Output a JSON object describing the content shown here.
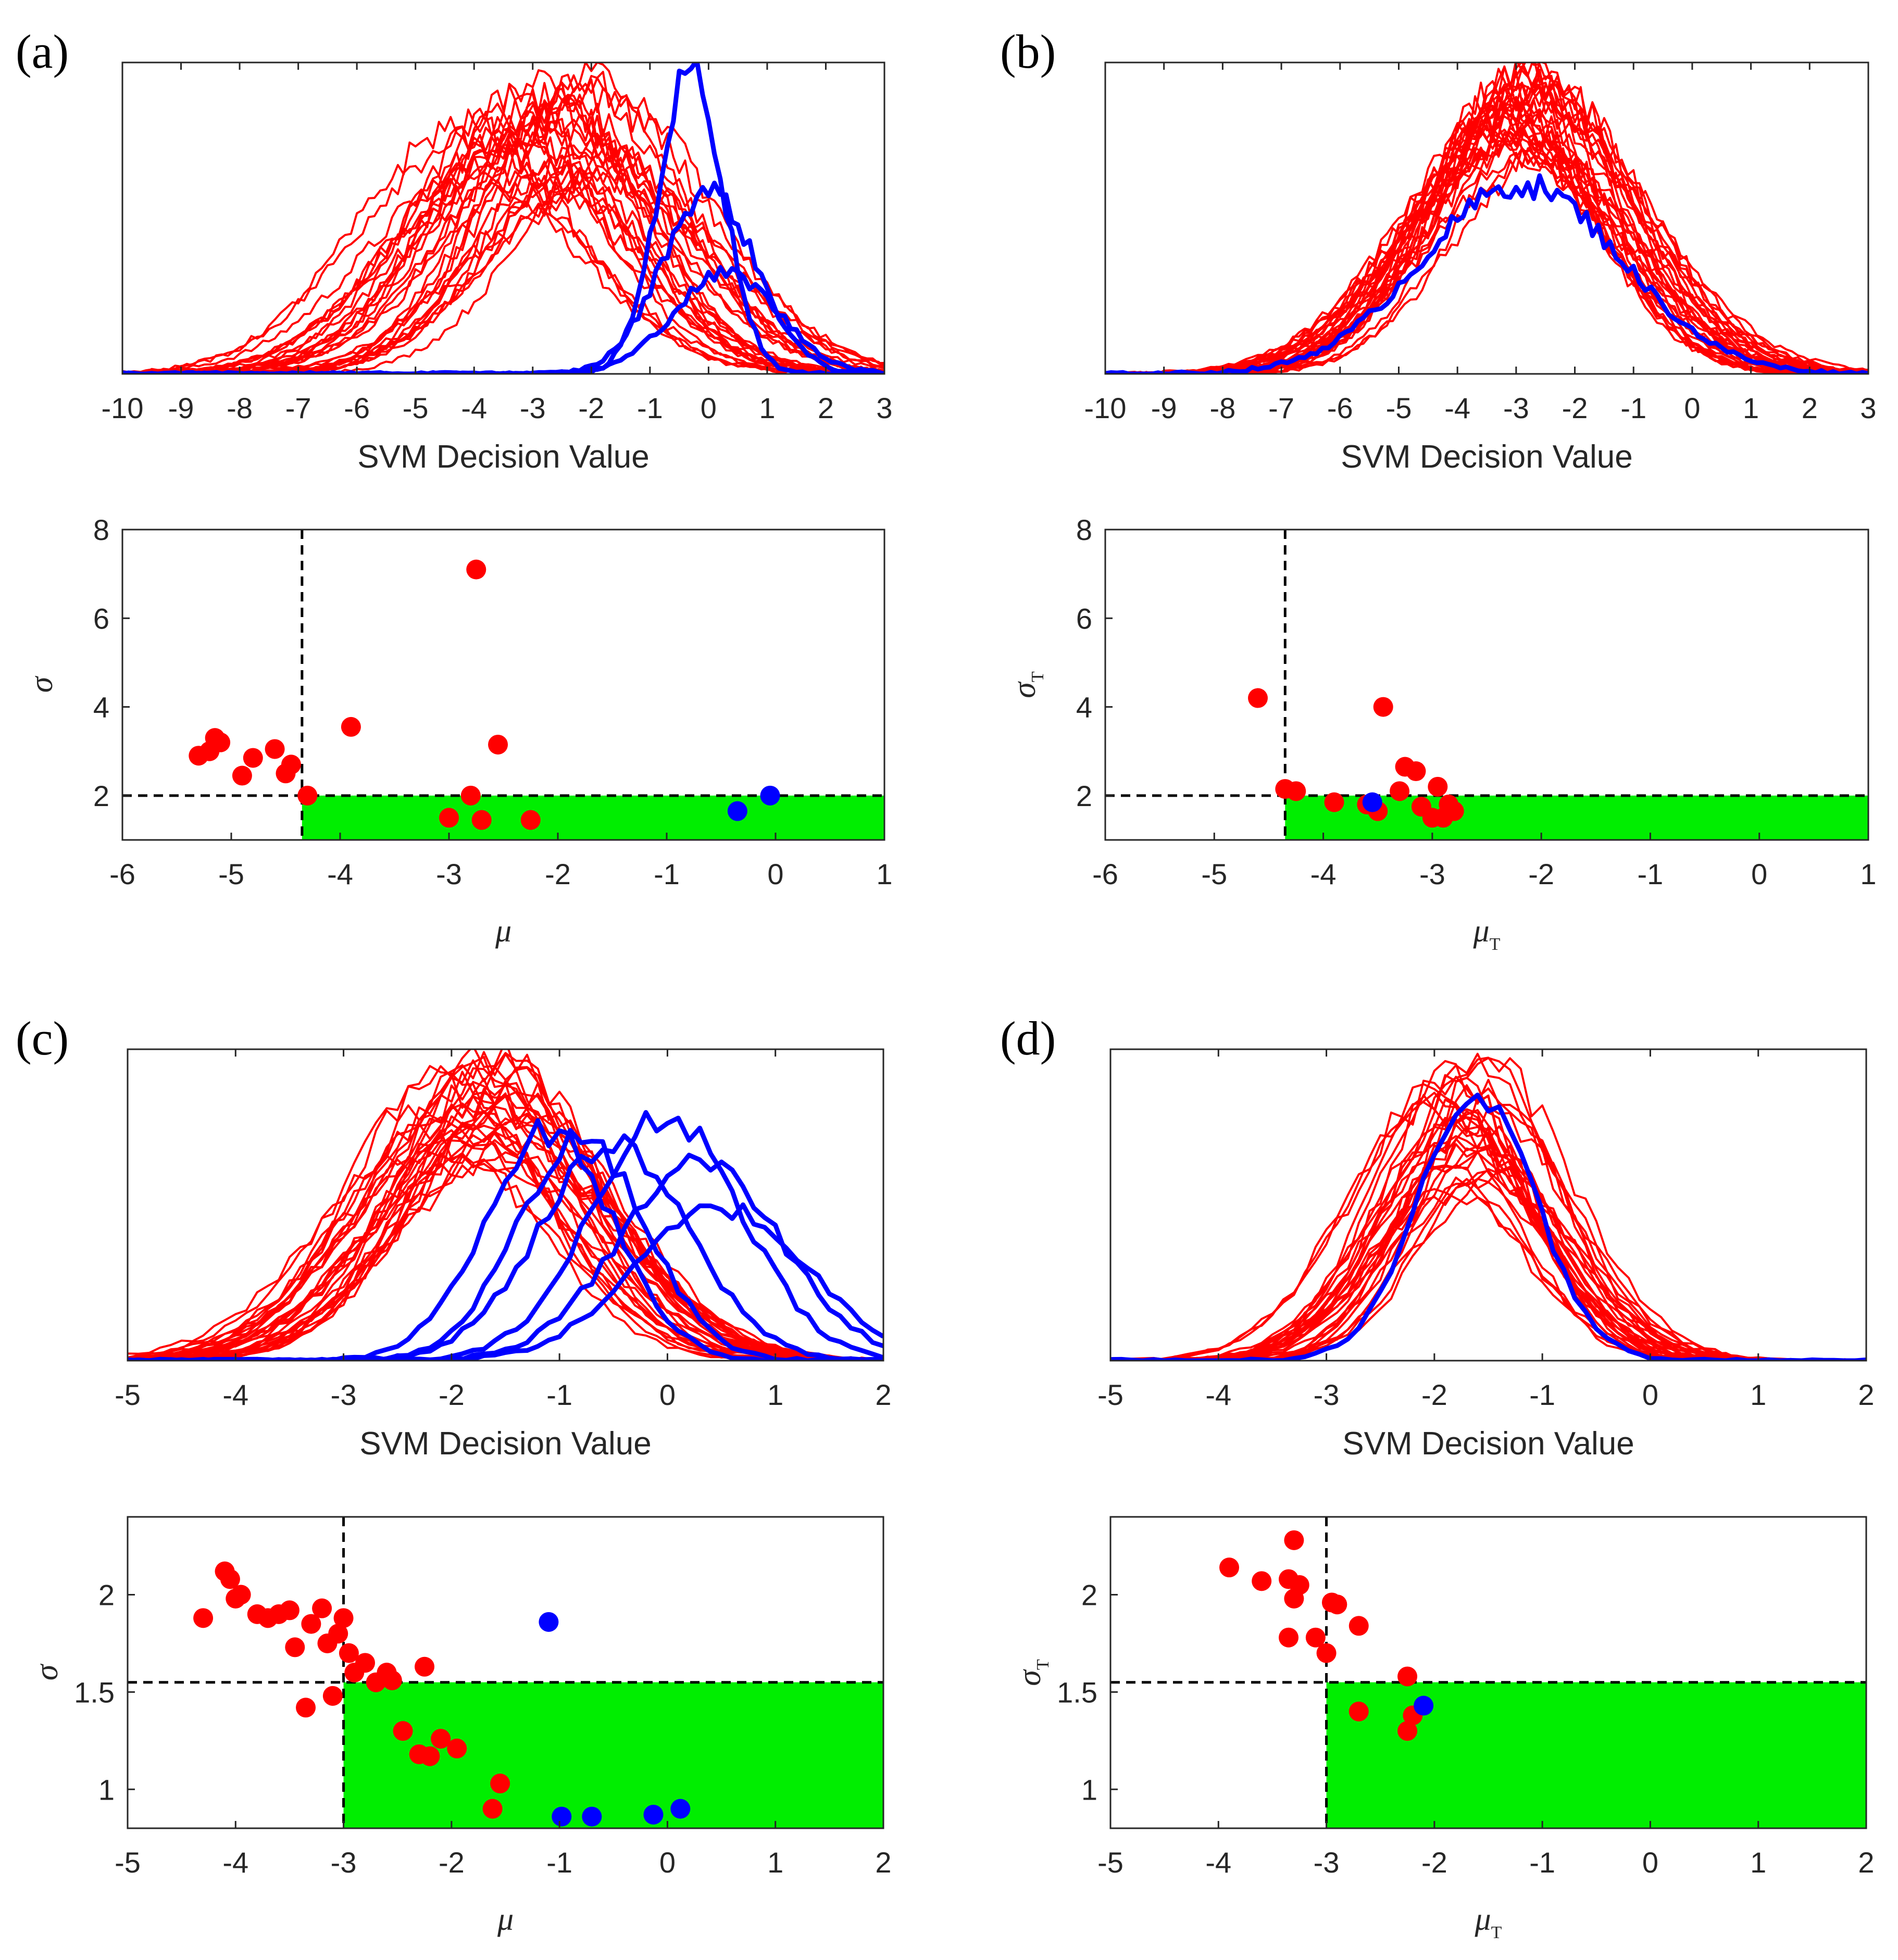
{
  "colors": {
    "red": "#ff0000",
    "blue": "#0000ff",
    "green": "#00ee00",
    "axis": "#262626"
  },
  "panels": [
    {
      "label": "(a)",
      "hist": {
        "type": "line",
        "xlabel": "SVM Decision Value",
        "xlim": [
          -10,
          3
        ],
        "xticks": [
          -10,
          -9,
          -8,
          -7,
          -6,
          -5,
          -4,
          -3,
          -2,
          -1,
          0,
          1,
          2,
          3
        ],
        "red_count": 30,
        "red_mean": [
          -4.2,
          -1.6
        ],
        "red_sd": [
          1.4,
          2.0
        ],
        "red_peak": [
          0.6,
          0.97
        ],
        "blue": [
          {
            "mean": -0.3,
            "sd": 0.55,
            "peak": 1.0
          },
          {
            "mean": 0.0,
            "sd": 0.8,
            "peak": 0.6
          },
          {
            "mean": 0.3,
            "sd": 0.9,
            "peak": 0.33
          }
        ]
      },
      "scatter": {
        "type": "scatter",
        "xlabel": "μ",
        "xlabel_sub": "",
        "ylabel": "σ",
        "ylabel_sub": "",
        "xlim": [
          -6,
          1
        ],
        "ylim": [
          1,
          8
        ],
        "xticks": [
          -6,
          -5,
          -4,
          -3,
          -2,
          -1,
          0,
          1
        ],
        "yticks": [
          2,
          4,
          6,
          8
        ],
        "threshold_x": -4.35,
        "threshold_y": 2.0,
        "red": [
          [
            -5.3,
            2.9
          ],
          [
            -5.2,
            3.0
          ],
          [
            -5.1,
            3.2
          ],
          [
            -5.15,
            3.3
          ],
          [
            -4.9,
            2.45
          ],
          [
            -4.8,
            2.85
          ],
          [
            -4.6,
            3.05
          ],
          [
            -4.5,
            2.5
          ],
          [
            -4.45,
            2.7
          ],
          [
            -4.3,
            2.0
          ],
          [
            -3.9,
            3.55
          ],
          [
            -2.75,
            7.1
          ],
          [
            -2.55,
            3.15
          ],
          [
            -2.8,
            2.0
          ],
          [
            -3.0,
            1.5
          ],
          [
            -2.7,
            1.45
          ],
          [
            -2.25,
            1.45
          ]
        ],
        "blue": [
          [
            -0.35,
            1.65
          ],
          [
            -0.05,
            2.0
          ]
        ]
      }
    },
    {
      "label": "(b)",
      "hist": {
        "type": "line",
        "xlabel": "SVM Decision Value",
        "xlim": [
          -10,
          3
        ],
        "xticks": [
          -10,
          -9,
          -8,
          -7,
          -6,
          -5,
          -4,
          -3,
          -2,
          -1,
          0,
          1,
          2,
          3
        ],
        "red_count": 30,
        "red_mean": [
          -3.2,
          -2.4
        ],
        "red_sd": [
          1.4,
          1.9
        ],
        "red_peak": [
          0.7,
          1.0
        ],
        "blue": [
          {
            "mean": -2.9,
            "sd": 1.7,
            "peak": 0.62
          }
        ]
      },
      "scatter": {
        "type": "scatter",
        "xlabel": "μ",
        "xlabel_sub": "T",
        "ylabel": "σ",
        "ylabel_sub": "T",
        "xlim": [
          -6,
          1
        ],
        "ylim": [
          1,
          8
        ],
        "xticks": [
          -6,
          -5,
          -4,
          -3,
          -2,
          -1,
          0,
          1
        ],
        "yticks": [
          2,
          4,
          6,
          8
        ],
        "threshold_x": -4.35,
        "threshold_y": 2.0,
        "red": [
          [
            -4.6,
            4.2
          ],
          [
            -4.35,
            2.15
          ],
          [
            -4.25,
            2.1
          ],
          [
            -3.9,
            1.85
          ],
          [
            -3.6,
            1.8
          ],
          [
            -3.5,
            1.65
          ],
          [
            -3.45,
            4.0
          ],
          [
            -3.3,
            2.1
          ],
          [
            -3.25,
            2.65
          ],
          [
            -3.15,
            2.55
          ],
          [
            -3.1,
            1.75
          ],
          [
            -3.0,
            1.5
          ],
          [
            -2.95,
            2.2
          ],
          [
            -2.9,
            1.5
          ],
          [
            -2.85,
            1.8
          ],
          [
            -2.8,
            1.65
          ]
        ],
        "blue": [
          [
            -3.55,
            1.85
          ]
        ]
      }
    },
    {
      "label": "(c)",
      "hist": {
        "type": "line",
        "xlabel": "SVM Decision Value",
        "xlim": [
          -5,
          2
        ],
        "xticks": [
          -5,
          -4,
          -3,
          -2,
          -1,
          0,
          1,
          2
        ],
        "red_count": 30,
        "red_mean": [
          -2.1,
          -1.4
        ],
        "red_sd": [
          0.8,
          1.1
        ],
        "red_peak": [
          0.65,
          1.0
        ],
        "blue": [
          {
            "mean": -1.1,
            "sd": 0.6,
            "peak": 0.75
          },
          {
            "mean": -0.8,
            "sd": 0.6,
            "peak": 0.72
          },
          {
            "mean": -0.5,
            "sd": 0.7,
            "peak": 0.7
          },
          {
            "mean": 0.0,
            "sd": 0.7,
            "peak": 0.8
          },
          {
            "mean": 0.3,
            "sd": 0.75,
            "peak": 0.65
          },
          {
            "mean": 0.5,
            "sd": 0.8,
            "peak": 0.5
          }
        ]
      },
      "scatter": {
        "type": "scatter",
        "xlabel": "μ",
        "xlabel_sub": "",
        "ylabel": "σ",
        "ylabel_sub": "",
        "xlim": [
          -5,
          2
        ],
        "ylim": [
          0.8,
          2.4
        ],
        "xticks": [
          -5,
          -4,
          -3,
          -2,
          -1,
          0,
          1,
          2
        ],
        "yticks": [
          1,
          1.5,
          2
        ],
        "threshold_x": -3.0,
        "threshold_y": 1.55,
        "red": [
          [
            -4.3,
            1.88
          ],
          [
            -4.1,
            2.12
          ],
          [
            -4.05,
            2.08
          ],
          [
            -4.0,
            1.98
          ],
          [
            -3.95,
            2.0
          ],
          [
            -3.8,
            1.9
          ],
          [
            -3.7,
            1.88
          ],
          [
            -3.6,
            1.9
          ],
          [
            -3.5,
            1.92
          ],
          [
            -3.45,
            1.73
          ],
          [
            -3.35,
            1.42
          ],
          [
            -3.3,
            1.85
          ],
          [
            -3.2,
            1.93
          ],
          [
            -3.15,
            1.75
          ],
          [
            -3.1,
            1.48
          ],
          [
            -3.05,
            1.8
          ],
          [
            -3.0,
            1.88
          ],
          [
            -2.95,
            1.7
          ],
          [
            -2.9,
            1.6
          ],
          [
            -2.8,
            1.65
          ],
          [
            -2.7,
            1.55
          ],
          [
            -2.6,
            1.6
          ],
          [
            -2.55,
            1.56
          ],
          [
            -2.25,
            1.63
          ],
          [
            -2.45,
            1.3
          ],
          [
            -2.3,
            1.18
          ],
          [
            -2.2,
            1.17
          ],
          [
            -2.1,
            1.26
          ],
          [
            -1.95,
            1.21
          ],
          [
            -1.55,
            1.03
          ],
          [
            -1.62,
            0.9
          ]
        ],
        "blue": [
          [
            -1.1,
            1.86
          ],
          [
            -0.98,
            0.86
          ],
          [
            -0.7,
            0.86
          ],
          [
            -0.13,
            0.87
          ],
          [
            0.12,
            0.9
          ]
        ]
      }
    },
    {
      "label": "(d)",
      "hist": {
        "type": "line",
        "xlabel": "SVM Decision Value",
        "xlim": [
          -5,
          2
        ],
        "xticks": [
          -5,
          -4,
          -3,
          -2,
          -1,
          0,
          1,
          2
        ],
        "red_count": 30,
        "red_mean": [
          -2.0,
          -1.4
        ],
        "red_sd": [
          0.6,
          0.85
        ],
        "red_peak": [
          0.55,
          0.98
        ],
        "blue": [
          {
            "mean": -1.6,
            "sd": 0.55,
            "peak": 0.85
          }
        ]
      },
      "scatter": {
        "type": "scatter",
        "xlabel": "μ",
        "xlabel_sub": "T",
        "ylabel": "σ",
        "ylabel_sub": "T",
        "xlim": [
          -5,
          2
        ],
        "ylim": [
          0.8,
          2.4
        ],
        "xticks": [
          -5,
          -4,
          -3,
          -2,
          -1,
          0,
          1,
          2
        ],
        "yticks": [
          1,
          1.5,
          2
        ],
        "threshold_x": -3.0,
        "threshold_y": 1.55,
        "red": [
          [
            -3.9,
            2.14
          ],
          [
            -3.6,
            2.07
          ],
          [
            -3.35,
            2.08
          ],
          [
            -3.3,
            1.98
          ],
          [
            -3.3,
            2.28
          ],
          [
            -3.25,
            2.05
          ],
          [
            -3.35,
            1.78
          ],
          [
            -3.1,
            1.78
          ],
          [
            -3.0,
            1.7
          ],
          [
            -2.95,
            1.96
          ],
          [
            -2.9,
            1.95
          ],
          [
            -2.7,
            1.84
          ],
          [
            -2.7,
            1.4
          ],
          [
            -2.25,
            1.58
          ],
          [
            -2.2,
            1.38
          ],
          [
            -2.25,
            1.3
          ]
        ],
        "blue": [
          [
            -2.1,
            1.43
          ]
        ]
      }
    }
  ]
}
